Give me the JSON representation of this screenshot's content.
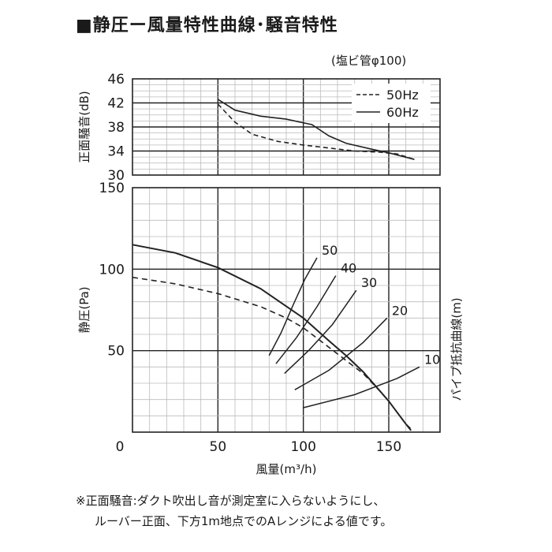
{
  "title": "■静圧ー風量特性曲線･騒音特性",
  "pipe_note": "(塩ビ管φ100)",
  "footnote": [
    "※正面騒音:ダクト吹出し音が測定室に入らないようにし、",
    "ルーバー正面、下方1m地点でのAレンジによる値です。"
  ],
  "chart_data": [
    {
      "type": "line",
      "name": "noise",
      "ylabel": "正面騒音(dB)",
      "xlim": [
        0,
        180
      ],
      "ylim": [
        30,
        46
      ],
      "yticks": [
        30,
        34,
        38,
        42,
        46
      ],
      "legend_position": "top-right",
      "series": [
        {
          "name": "50Hz",
          "style": "dashed",
          "points": [
            [
              50,
              41.8
            ],
            [
              60,
              38.8
            ],
            [
              70,
              36.8
            ],
            [
              85,
              35.6
            ],
            [
              100,
              35.0
            ],
            [
              115,
              34.5
            ],
            [
              130,
              34.0
            ],
            [
              145,
              33.8
            ],
            [
              155,
              33.5
            ],
            [
              165,
              32.6
            ]
          ]
        },
        {
          "name": "60Hz",
          "style": "solid",
          "points": [
            [
              50,
              42.6
            ],
            [
              60,
              40.8
            ],
            [
              75,
              39.8
            ],
            [
              90,
              39.3
            ],
            [
              105,
              38.4
            ],
            [
              115,
              36.5
            ],
            [
              125,
              35.3
            ],
            [
              140,
              34.3
            ],
            [
              150,
              33.7
            ],
            [
              165,
              32.6
            ]
          ]
        }
      ]
    },
    {
      "type": "line",
      "name": "static-pressure",
      "xlabel": "風量(m³/h)",
      "ylabel": "静圧(Pa)",
      "right_label": "パイプ抵抗曲線(m)",
      "xlim": [
        0,
        180
      ],
      "ylim": [
        0,
        150
      ],
      "xticks": [
        0,
        50,
        100,
        150
      ],
      "yticks": [
        50,
        100,
        150
      ],
      "series": [
        {
          "name": "60Hz",
          "style": "solid",
          "points": [
            [
              0,
              115
            ],
            [
              25,
              110
            ],
            [
              50,
              101
            ],
            [
              75,
              88
            ],
            [
              100,
              70
            ],
            [
              115,
              56
            ],
            [
              125,
              47
            ],
            [
              135,
              37
            ],
            [
              145,
              25
            ],
            [
              150,
              19
            ],
            [
              155,
              12
            ],
            [
              160,
              5
            ],
            [
              163,
              1
            ]
          ]
        },
        {
          "name": "50Hz",
          "style": "dashed",
          "points": [
            [
              0,
              95
            ],
            [
              25,
              91
            ],
            [
              50,
              85
            ],
            [
              75,
              77
            ],
            [
              90,
              70
            ],
            [
              100,
              64
            ],
            [
              115,
              52
            ],
            [
              125,
              44
            ],
            [
              135,
              36
            ],
            [
              145,
              25
            ],
            [
              150,
              19
            ],
            [
              155,
              12
            ],
            [
              160,
              5
            ],
            [
              164,
              1
            ]
          ]
        }
      ],
      "resistance_curves": [
        {
          "label": "50",
          "points": [
            [
              80,
              47
            ],
            [
              87,
              61
            ],
            [
              94,
              78
            ],
            [
              101,
              94
            ],
            [
              108,
              107
            ]
          ]
        },
        {
          "label": "40",
          "points": [
            [
              84,
              42
            ],
            [
              96,
              58
            ],
            [
              108,
              77
            ],
            [
              119,
              96
            ]
          ]
        },
        {
          "label": "30",
          "points": [
            [
              89,
              36
            ],
            [
              103,
              50
            ],
            [
              117,
              66
            ],
            [
              131,
              87
            ]
          ]
        },
        {
          "label": "20",
          "points": [
            [
              95,
              26
            ],
            [
              115,
              38
            ],
            [
              135,
              55
            ],
            [
              149,
              70
            ]
          ]
        },
        {
          "label": "10",
          "points": [
            [
              100,
              15
            ],
            [
              130,
              23
            ],
            [
              155,
              33
            ],
            [
              168,
              40
            ]
          ]
        }
      ]
    }
  ]
}
